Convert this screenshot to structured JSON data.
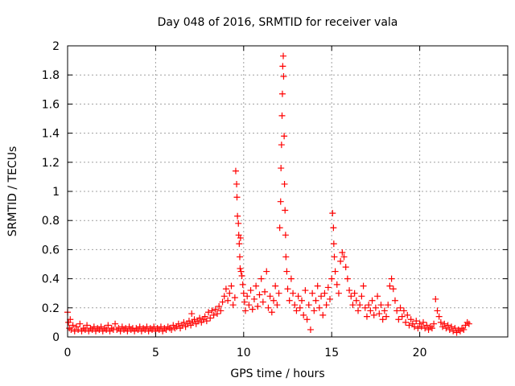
{
  "chart_data": {
    "type": "scatter",
    "title": "Day 048 of 2016, SRMTID for receiver vala",
    "xlabel": "GPS time / hours",
    "ylabel": "SRMTID / TECUs",
    "xlim": [
      0,
      25
    ],
    "ylim": [
      0,
      2
    ],
    "xticks": [
      0,
      5,
      10,
      15,
      20
    ],
    "yticks": [
      0,
      0.2,
      0.4,
      0.6,
      0.8,
      1,
      1.2,
      1.4,
      1.6,
      1.8,
      2
    ],
    "grid": true,
    "marker": "plus",
    "color": "#ff0000",
    "series": [
      {
        "name": "SRMTID",
        "points": [
          [
            0.0,
            0.17
          ],
          [
            0.05,
            0.1
          ],
          [
            0.1,
            0.06
          ],
          [
            0.15,
            0.12
          ],
          [
            0.2,
            0.05
          ],
          [
            0.3,
            0.08
          ],
          [
            0.4,
            0.04
          ],
          [
            0.5,
            0.07
          ],
          [
            0.6,
            0.05
          ],
          [
            0.7,
            0.09
          ],
          [
            0.8,
            0.04
          ],
          [
            0.9,
            0.06
          ],
          [
            1.0,
            0.05
          ],
          [
            1.1,
            0.08
          ],
          [
            1.2,
            0.04
          ],
          [
            1.3,
            0.06
          ],
          [
            1.4,
            0.05
          ],
          [
            1.5,
            0.07
          ],
          [
            1.6,
            0.04
          ],
          [
            1.7,
            0.06
          ],
          [
            1.8,
            0.05
          ],
          [
            1.9,
            0.07
          ],
          [
            2.0,
            0.04
          ],
          [
            2.1,
            0.06
          ],
          [
            2.2,
            0.05
          ],
          [
            2.3,
            0.08
          ],
          [
            2.4,
            0.04
          ],
          [
            2.5,
            0.06
          ],
          [
            2.6,
            0.05
          ],
          [
            2.7,
            0.09
          ],
          [
            2.8,
            0.05
          ],
          [
            2.9,
            0.06
          ],
          [
            3.0,
            0.04
          ],
          [
            3.1,
            0.07
          ],
          [
            3.2,
            0.05
          ],
          [
            3.3,
            0.06
          ],
          [
            3.4,
            0.04
          ],
          [
            3.5,
            0.07
          ],
          [
            3.6,
            0.05
          ],
          [
            3.7,
            0.06
          ],
          [
            3.8,
            0.04
          ],
          [
            3.9,
            0.06
          ],
          [
            4.0,
            0.05
          ],
          [
            4.1,
            0.07
          ],
          [
            4.2,
            0.04
          ],
          [
            4.3,
            0.06
          ],
          [
            4.4,
            0.05
          ],
          [
            4.5,
            0.07
          ],
          [
            4.6,
            0.04
          ],
          [
            4.7,
            0.06
          ],
          [
            4.8,
            0.05
          ],
          [
            4.9,
            0.07
          ],
          [
            5.0,
            0.04
          ],
          [
            5.1,
            0.06
          ],
          [
            5.2,
            0.05
          ],
          [
            5.3,
            0.07
          ],
          [
            5.4,
            0.04
          ],
          [
            5.5,
            0.06
          ],
          [
            5.6,
            0.05
          ],
          [
            5.7,
            0.07
          ],
          [
            5.8,
            0.06
          ],
          [
            5.9,
            0.05
          ],
          [
            6.0,
            0.08
          ],
          [
            6.1,
            0.06
          ],
          [
            6.2,
            0.07
          ],
          [
            6.3,
            0.09
          ],
          [
            6.4,
            0.06
          ],
          [
            6.5,
            0.08
          ],
          [
            6.6,
            0.1
          ],
          [
            6.7,
            0.07
          ],
          [
            6.8,
            0.09
          ],
          [
            6.9,
            0.11
          ],
          [
            7.0,
            0.08
          ],
          [
            7.05,
            0.16
          ],
          [
            7.1,
            0.1
          ],
          [
            7.2,
            0.12
          ],
          [
            7.3,
            0.09
          ],
          [
            7.4,
            0.11
          ],
          [
            7.5,
            0.13
          ],
          [
            7.6,
            0.1
          ],
          [
            7.7,
            0.12
          ],
          [
            7.8,
            0.14
          ],
          [
            7.9,
            0.11
          ],
          [
            8.0,
            0.17
          ],
          [
            8.1,
            0.13
          ],
          [
            8.2,
            0.18
          ],
          [
            8.3,
            0.15
          ],
          [
            8.4,
            0.19
          ],
          [
            8.5,
            0.16
          ],
          [
            8.6,
            0.21
          ],
          [
            8.7,
            0.18
          ],
          [
            8.8,
            0.24
          ],
          [
            8.9,
            0.28
          ],
          [
            9.0,
            0.33
          ],
          [
            9.1,
            0.25
          ],
          [
            9.2,
            0.3
          ],
          [
            9.3,
            0.35
          ],
          [
            9.4,
            0.22
          ],
          [
            9.5,
            0.27
          ],
          [
            9.55,
            1.14
          ],
          [
            9.6,
            1.05
          ],
          [
            9.62,
            0.96
          ],
          [
            9.65,
            0.83
          ],
          [
            9.7,
            0.78
          ],
          [
            9.72,
            0.7
          ],
          [
            9.75,
            0.64
          ],
          [
            9.78,
            0.55
          ],
          [
            9.8,
            0.47
          ],
          [
            9.82,
            0.68
          ],
          [
            9.85,
            0.45
          ],
          [
            9.9,
            0.42
          ],
          [
            9.95,
            0.36
          ],
          [
            10.0,
            0.3
          ],
          [
            10.05,
            0.24
          ],
          [
            10.1,
            0.18
          ],
          [
            10.2,
            0.28
          ],
          [
            10.3,
            0.22
          ],
          [
            10.4,
            0.32
          ],
          [
            10.5,
            0.19
          ],
          [
            10.6,
            0.26
          ],
          [
            10.7,
            0.35
          ],
          [
            10.8,
            0.21
          ],
          [
            10.9,
            0.29
          ],
          [
            11.0,
            0.4
          ],
          [
            11.1,
            0.24
          ],
          [
            11.2,
            0.31
          ],
          [
            11.3,
            0.45
          ],
          [
            11.4,
            0.2
          ],
          [
            11.5,
            0.28
          ],
          [
            11.6,
            0.17
          ],
          [
            11.7,
            0.25
          ],
          [
            11.8,
            0.35
          ],
          [
            11.9,
            0.22
          ],
          [
            12.0,
            0.3
          ],
          [
            12.05,
            0.75
          ],
          [
            12.1,
            0.93
          ],
          [
            12.12,
            1.16
          ],
          [
            12.15,
            1.32
          ],
          [
            12.18,
            1.52
          ],
          [
            12.2,
            1.67
          ],
          [
            12.22,
            1.86
          ],
          [
            12.25,
            1.93
          ],
          [
            12.27,
            1.79
          ],
          [
            12.3,
            1.38
          ],
          [
            12.32,
            1.05
          ],
          [
            12.35,
            0.87
          ],
          [
            12.38,
            0.7
          ],
          [
            12.4,
            0.55
          ],
          [
            12.45,
            0.45
          ],
          [
            12.5,
            0.33
          ],
          [
            12.6,
            0.25
          ],
          [
            12.7,
            0.4
          ],
          [
            12.8,
            0.3
          ],
          [
            12.9,
            0.22
          ],
          [
            13.0,
            0.18
          ],
          [
            13.1,
            0.28
          ],
          [
            13.2,
            0.2
          ],
          [
            13.3,
            0.25
          ],
          [
            13.4,
            0.15
          ],
          [
            13.5,
            0.32
          ],
          [
            13.6,
            0.12
          ],
          [
            13.7,
            0.22
          ],
          [
            13.8,
            0.05
          ],
          [
            13.9,
            0.3
          ],
          [
            14.0,
            0.18
          ],
          [
            14.1,
            0.25
          ],
          [
            14.2,
            0.35
          ],
          [
            14.3,
            0.2
          ],
          [
            14.4,
            0.28
          ],
          [
            14.5,
            0.15
          ],
          [
            14.6,
            0.3
          ],
          [
            14.7,
            0.22
          ],
          [
            14.8,
            0.34
          ],
          [
            14.9,
            0.26
          ],
          [
            15.0,
            0.4
          ],
          [
            15.05,
            0.85
          ],
          [
            15.1,
            0.75
          ],
          [
            15.12,
            0.64
          ],
          [
            15.15,
            0.55
          ],
          [
            15.2,
            0.45
          ],
          [
            15.3,
            0.36
          ],
          [
            15.4,
            0.3
          ],
          [
            15.5,
            0.52
          ],
          [
            15.6,
            0.58
          ],
          [
            15.7,
            0.55
          ],
          [
            15.8,
            0.48
          ],
          [
            15.9,
            0.4
          ],
          [
            16.0,
            0.32
          ],
          [
            16.1,
            0.28
          ],
          [
            16.2,
            0.22
          ],
          [
            16.3,
            0.3
          ],
          [
            16.4,
            0.25
          ],
          [
            16.5,
            0.18
          ],
          [
            16.6,
            0.22
          ],
          [
            16.7,
            0.28
          ],
          [
            16.8,
            0.35
          ],
          [
            16.9,
            0.2
          ],
          [
            17.0,
            0.14
          ],
          [
            17.1,
            0.22
          ],
          [
            17.2,
            0.18
          ],
          [
            17.3,
            0.25
          ],
          [
            17.4,
            0.15
          ],
          [
            17.5,
            0.2
          ],
          [
            17.6,
            0.28
          ],
          [
            17.7,
            0.16
          ],
          [
            17.8,
            0.22
          ],
          [
            17.9,
            0.12
          ],
          [
            18.0,
            0.18
          ],
          [
            18.1,
            0.14
          ],
          [
            18.2,
            0.22
          ],
          [
            18.3,
            0.35
          ],
          [
            18.4,
            0.4
          ],
          [
            18.5,
            0.33
          ],
          [
            18.6,
            0.25
          ],
          [
            18.7,
            0.18
          ],
          [
            18.8,
            0.12
          ],
          [
            18.9,
            0.2
          ],
          [
            19.0,
            0.14
          ],
          [
            19.1,
            0.18
          ],
          [
            19.2,
            0.1
          ],
          [
            19.3,
            0.15
          ],
          [
            19.4,
            0.08
          ],
          [
            19.5,
            0.12
          ],
          [
            19.6,
            0.09
          ],
          [
            19.7,
            0.07
          ],
          [
            19.8,
            0.11
          ],
          [
            19.9,
            0.06
          ],
          [
            20.0,
            0.09
          ],
          [
            20.1,
            0.07
          ],
          [
            20.2,
            0.1
          ],
          [
            20.3,
            0.06
          ],
          [
            20.4,
            0.08
          ],
          [
            20.5,
            0.05
          ],
          [
            20.6,
            0.07
          ],
          [
            20.7,
            0.06
          ],
          [
            20.8,
            0.09
          ],
          [
            20.9,
            0.26
          ],
          [
            21.0,
            0.18
          ],
          [
            21.1,
            0.14
          ],
          [
            21.2,
            0.1
          ],
          [
            21.3,
            0.07
          ],
          [
            21.4,
            0.09
          ],
          [
            21.5,
            0.06
          ],
          [
            21.6,
            0.08
          ],
          [
            21.7,
            0.05
          ],
          [
            21.8,
            0.07
          ],
          [
            21.9,
            0.04
          ],
          [
            22.0,
            0.06
          ],
          [
            22.1,
            0.03
          ],
          [
            22.2,
            0.05
          ],
          [
            22.3,
            0.04
          ],
          [
            22.4,
            0.06
          ],
          [
            22.5,
            0.05
          ],
          [
            22.6,
            0.08
          ],
          [
            22.7,
            0.1
          ],
          [
            22.8,
            0.09
          ]
        ]
      }
    ]
  }
}
